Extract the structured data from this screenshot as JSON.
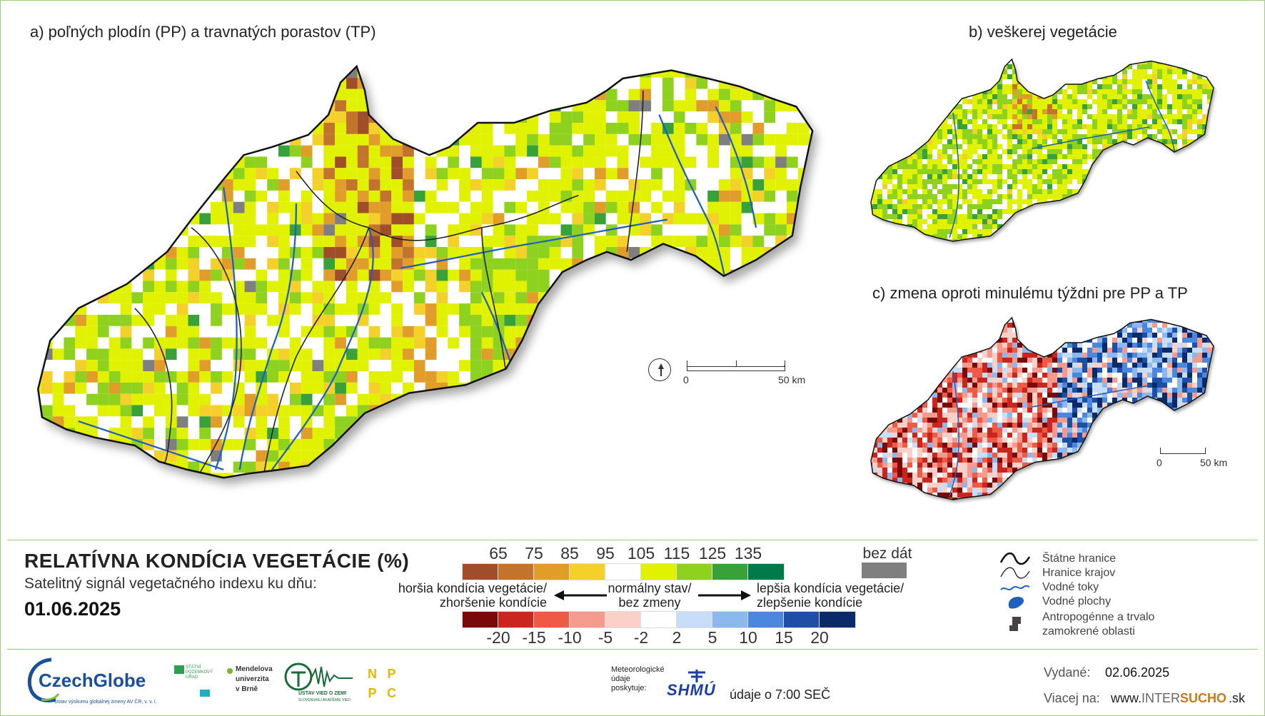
{
  "titles": {
    "a": "a) poľných plodín (PP) a travnatých porastov (TP)",
    "b": "b) veškerej vegetácie",
    "c": "c) zmena oproti minulému týždni pre PP a TP"
  },
  "scale_a": {
    "zero": "0",
    "fifty": "50  km"
  },
  "scale_c": {
    "zero": "0",
    "fifty": "50 km"
  },
  "legend": {
    "title": "RELATÍVNA KONDÍCIA VEGETÁCIE (%)",
    "subtitle": "Satelitný signál vegetačného indexu ku dňu:",
    "date": "01.06.2025",
    "top_ticks": [
      "65",
      "75",
      "85",
      "95",
      "105",
      "115",
      "125",
      "135"
    ],
    "top_colors": [
      "#a04e2a",
      "#c2742d",
      "#e09d2a",
      "#f4d02b",
      "#ffffff",
      "#e1f200",
      "#8fd11f",
      "#38a13a",
      "#007a4a"
    ],
    "no_data_label": "bez dát",
    "no_data_color": "#7f7f7f",
    "worse_line1": "horšia kondícia vegetácie/",
    "worse_line2": "zhoršenie kondície",
    "normal_line1": "normálny stav/",
    "normal_line2": "bez zmeny",
    "better_line1": "lepšia kondícia vegetácie/",
    "better_line2": "zlepšenie kondície",
    "bottom_ticks": [
      "-20",
      "-15",
      "-10",
      "-5",
      "-2",
      "2",
      "5",
      "10",
      "15",
      "20"
    ],
    "bottom_colors": [
      "#7a0a0a",
      "#c8261e",
      "#ee5a45",
      "#f59a8c",
      "#fbd0c8",
      "#ffffff",
      "#c8ddf8",
      "#8db8ee",
      "#4a87dd",
      "#1c4fa5",
      "#0a2a6a"
    ]
  },
  "layers": {
    "state_border": "Štátne hranice",
    "region_border": "Hranice krajov",
    "rivers": "Vodné toky",
    "water_bodies": "Vodné plochy",
    "anthropogenic_1": "Antropogénne a trvalo",
    "anthropogenic_2": "zamokrené oblasti"
  },
  "footer": {
    "czechglobe": "CzechGlobe",
    "czechglobe_sub": "Ústav výskumu globálnej zmeny AV ČR, v. v. i.",
    "spu": "STÁTNÍ POZEMKOVÝ ÚŘAD",
    "mendelu_1": "Mendelova",
    "mendelu_2": "univerzita",
    "mendelu_3": "v Brně",
    "uvz": "ÚSTAV VIED O ZEMI",
    "uvz_sub": "SLOVENSKEJ AKADÉMIE VIED",
    "npc_letters": [
      "N",
      "P",
      "P",
      "C"
    ],
    "met_1": "Meteorologické",
    "met_2": "údaje",
    "met_3": "poskytuje:",
    "shmu": "SHMÚ",
    "time_note": "údaje o 7:00 SEČ",
    "issued_label": "Vydané:",
    "issued_date": "02.06.2025",
    "more_label": "Viacej na:",
    "url_pre": "www.",
    "url_inter": "INTER",
    "url_sucho": "SUCHO",
    "url_post": ".sk"
  }
}
